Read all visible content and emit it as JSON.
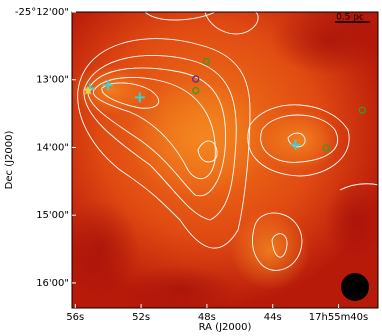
{
  "chart_data": {
    "type": "image",
    "xlabel": "RA (J2000)",
    "ylabel": "Dec (J2000)",
    "xlim": [
      56.2,
      37.6
    ],
    "ylim": [
      -16.37,
      -12
    ],
    "xticks": [
      {
        "value": 56,
        "label": "56s"
      },
      {
        "value": 52,
        "label": "52s"
      },
      {
        "value": 48,
        "label": "48s"
      },
      {
        "value": 44,
        "label": "44s"
      },
      {
        "value": 40,
        "label": "17h55m40s"
      }
    ],
    "yticks": [
      {
        "value": -12,
        "label": "-25°12'00\""
      },
      {
        "value": -13,
        "label": "13'00\""
      },
      {
        "value": -14,
        "label": "14'00\""
      },
      {
        "value": -15,
        "label": "15'00\""
      },
      {
        "value": -16,
        "label": "16'00\""
      }
    ],
    "scale_bar": "0.5 pc",
    "series": [
      {
        "marker": "cross",
        "color": "#3fd0d0",
        "x": [
          55.11,
          54.02,
          52.08,
          42.62
        ],
        "y": [
          -13.13,
          -13.08,
          -13.26,
          -13.96
        ]
      },
      {
        "marker": "circle",
        "color": "#3a9a20",
        "x": [
          48.02,
          48.68,
          38.56,
          40.75
        ],
        "y": [
          -12.73,
          -13.16,
          -13.45,
          -14.01
        ]
      },
      {
        "marker": "circle",
        "color": "#5a2a9a",
        "x": [
          48.68
        ],
        "y": [
          -12.99
        ]
      },
      {
        "marker": "star",
        "color": "#f0d040",
        "x": [
          55.23
        ],
        "y": [
          -13.16
        ]
      }
    ]
  }
}
